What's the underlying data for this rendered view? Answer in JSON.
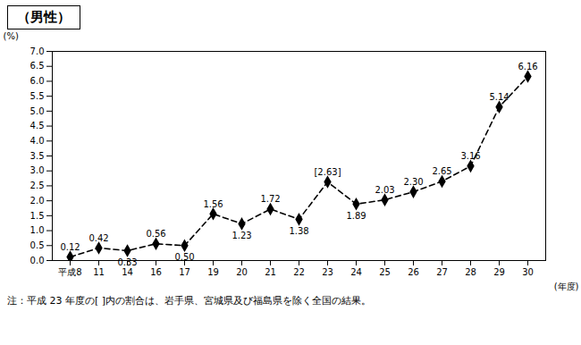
{
  "chart_data": {
    "type": "line",
    "title": "（男性）",
    "y_label": "(%)",
    "x_label": "(年度)",
    "annotations": [
      "注：平成 23 年度の[ ]内の割合は、岩手県、宮城県及び福島県を除く全国の結果。"
    ],
    "categories": [
      "平成8",
      "11",
      "14",
      "16",
      "17",
      "19",
      "20",
      "21",
      "22",
      "23",
      "24",
      "25",
      "26",
      "27",
      "28",
      "29",
      "30"
    ],
    "values": [
      0.12,
      0.42,
      0.33,
      0.56,
      0.5,
      1.56,
      1.23,
      1.72,
      1.38,
      2.63,
      1.89,
      2.03,
      2.3,
      2.65,
      3.16,
      5.14,
      6.16
    ],
    "value_labels": [
      "0.12",
      "0.42",
      "0.33",
      "0.56",
      "0.50",
      "1.56",
      "1.23",
      "1.72",
      "1.38",
      "[2.63]",
      "1.89",
      "2.03",
      "2.30",
      "2.65",
      "3.16",
      "5.14",
      "6.16"
    ],
    "color": "#000000",
    "marker": "diamond",
    "line_style": "dashed",
    "data_labels": true,
    "grid": false,
    "ylim": [
      0,
      7
    ],
    "yticks": [
      {
        "value": 0,
        "label": "0.0"
      },
      {
        "value": 0.5,
        "label": "0.5"
      },
      {
        "value": 1,
        "label": "1.0"
      },
      {
        "value": 1.5,
        "label": "1.5"
      },
      {
        "value": 2,
        "label": "2.0"
      },
      {
        "value": 2.5,
        "label": "2.5"
      },
      {
        "value": 3,
        "label": "3.0"
      },
      {
        "value": 3.5,
        "label": "3.5"
      },
      {
        "value": 4,
        "label": "4.0"
      },
      {
        "value": 4.5,
        "label": "4.5"
      },
      {
        "value": 5,
        "label": "5.0"
      },
      {
        "value": 5.5,
        "label": "5.5"
      },
      {
        "value": 6,
        "label": "6.0"
      },
      {
        "value": 6.5,
        "label": "6.5"
      },
      {
        "value": 7,
        "label": "7.0"
      }
    ]
  }
}
